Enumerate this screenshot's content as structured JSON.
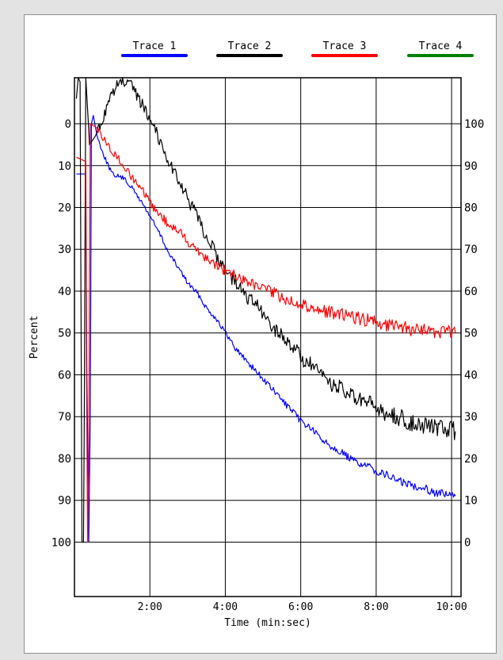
{
  "chart_data": {
    "type": "line",
    "xlabel": "Time (min:sec)",
    "ylabel": "Percent",
    "x_unit": "minutes",
    "xlim": [
      0,
      10.25
    ],
    "x_ticks": [
      {
        "value": 2,
        "label": "2:00"
      },
      {
        "value": 4,
        "label": "4:00"
      },
      {
        "value": 6,
        "label": "6:00"
      },
      {
        "value": 8,
        "label": "8:00"
      },
      {
        "value": 10,
        "label": "10:00"
      }
    ],
    "left_axis": {
      "direction": "inverted",
      "ylim": [
        -11,
        113
      ],
      "ticks": [
        0,
        10,
        20,
        30,
        40,
        50,
        60,
        70,
        80,
        90,
        100
      ]
    },
    "right_axis": {
      "ylim": [
        111,
        -13
      ],
      "ticks": [
        100,
        90,
        80,
        70,
        60,
        50,
        40,
        30,
        20,
        10,
        0
      ]
    },
    "grid": true,
    "legend_position": "top",
    "series": [
      {
        "name": "Trace 1",
        "color": "#0000ff",
        "points": [
          [
            0.05,
            12
          ],
          [
            0.3,
            12
          ],
          [
            0.33,
            60
          ],
          [
            0.38,
            100
          ],
          [
            0.42,
            70
          ],
          [
            0.45,
            0
          ],
          [
            0.5,
            -2
          ],
          [
            0.6,
            3
          ],
          [
            0.8,
            8
          ],
          [
            1,
            12
          ],
          [
            1.3,
            13
          ],
          [
            1.5,
            15
          ],
          [
            1.8,
            19
          ],
          [
            2,
            22
          ],
          [
            2.3,
            27
          ],
          [
            2.5,
            31
          ],
          [
            2.8,
            35
          ],
          [
            3,
            38
          ],
          [
            3.3,
            41
          ],
          [
            3.5,
            44
          ],
          [
            3.8,
            47
          ],
          [
            4,
            50
          ],
          [
            4.3,
            54
          ],
          [
            4.5,
            56
          ],
          [
            4.8,
            59
          ],
          [
            5,
            61
          ],
          [
            5.3,
            64
          ],
          [
            5.5,
            66
          ],
          [
            5.8,
            69
          ],
          [
            6,
            71
          ],
          [
            6.3,
            73
          ],
          [
            6.5,
            75
          ],
          [
            6.8,
            77
          ],
          [
            7,
            78
          ],
          [
            7.3,
            80
          ],
          [
            7.5,
            81
          ],
          [
            7.8,
            82
          ],
          [
            8,
            83
          ],
          [
            8.3,
            84
          ],
          [
            8.5,
            85
          ],
          [
            8.8,
            86
          ],
          [
            9,
            86.5
          ],
          [
            9.3,
            87
          ],
          [
            9.5,
            88
          ],
          [
            9.8,
            88.5
          ],
          [
            10.1,
            89
          ]
        ]
      },
      {
        "name": "Trace 2",
        "color": "#000000",
        "points": [
          [
            0.05,
            -6
          ],
          [
            0.1,
            -11
          ],
          [
            0.15,
            -10
          ],
          [
            0.2,
            100
          ],
          [
            0.24,
            100
          ],
          [
            0.26,
            70
          ],
          [
            0.3,
            -11
          ],
          [
            0.4,
            5
          ],
          [
            0.55,
            3
          ],
          [
            0.7,
            0
          ],
          [
            0.9,
            -5
          ],
          [
            1.1,
            -9
          ],
          [
            1.3,
            -10
          ],
          [
            1.5,
            -9
          ],
          [
            1.7,
            -6
          ],
          [
            1.9,
            -3
          ],
          [
            2.1,
            0
          ],
          [
            2.3,
            5
          ],
          [
            2.5,
            9
          ],
          [
            2.8,
            14
          ],
          [
            3,
            18
          ],
          [
            3.3,
            23
          ],
          [
            3.5,
            27
          ],
          [
            3.8,
            32
          ],
          [
            4,
            35
          ],
          [
            4.3,
            38
          ],
          [
            4.5,
            41
          ],
          [
            4.8,
            43
          ],
          [
            5,
            46
          ],
          [
            5.3,
            49
          ],
          [
            5.5,
            51
          ],
          [
            5.8,
            53
          ],
          [
            6,
            56
          ],
          [
            6.3,
            58
          ],
          [
            6.5,
            60
          ],
          [
            6.8,
            62
          ],
          [
            7,
            63
          ],
          [
            7.3,
            65
          ],
          [
            7.5,
            66
          ],
          [
            7.8,
            67
          ],
          [
            8,
            68
          ],
          [
            8.3,
            69.5
          ],
          [
            8.5,
            70
          ],
          [
            8.8,
            71
          ],
          [
            9,
            71.5
          ],
          [
            9.3,
            72
          ],
          [
            9.5,
            72.5
          ],
          [
            9.8,
            73
          ],
          [
            10.1,
            73.5
          ]
        ]
      },
      {
        "name": "Trace 3",
        "color": "#ff0000",
        "points": [
          [
            0.05,
            8
          ],
          [
            0.3,
            9
          ],
          [
            0.32,
            60
          ],
          [
            0.35,
            100
          ],
          [
            0.38,
            80
          ],
          [
            0.42,
            0
          ],
          [
            0.6,
            1
          ],
          [
            0.8,
            4
          ],
          [
            1,
            6.5
          ],
          [
            1.3,
            10
          ],
          [
            1.5,
            12.5
          ],
          [
            1.8,
            16
          ],
          [
            2,
            19
          ],
          [
            2.3,
            22
          ],
          [
            2.5,
            24
          ],
          [
            2.8,
            26
          ],
          [
            3,
            28
          ],
          [
            3.3,
            30.5
          ],
          [
            3.5,
            32
          ],
          [
            3.8,
            34
          ],
          [
            4,
            35
          ],
          [
            4.3,
            36.5
          ],
          [
            4.5,
            37.5
          ],
          [
            4.8,
            38.5
          ],
          [
            5,
            39.5
          ],
          [
            5.3,
            40.5
          ],
          [
            5.5,
            41.5
          ],
          [
            5.8,
            42.5
          ],
          [
            6,
            43
          ],
          [
            6.3,
            44
          ],
          [
            6.5,
            44.5
          ],
          [
            6.8,
            45
          ],
          [
            7,
            45.5
          ],
          [
            7.3,
            46
          ],
          [
            7.5,
            46.5
          ],
          [
            7.8,
            47
          ],
          [
            8,
            47.5
          ],
          [
            8.3,
            48
          ],
          [
            8.5,
            48.5
          ],
          [
            8.8,
            49
          ],
          [
            9,
            49
          ],
          [
            9.3,
            49.5
          ],
          [
            9.5,
            49.5
          ],
          [
            9.8,
            50
          ],
          [
            10.1,
            50
          ]
        ]
      },
      {
        "name": "Trace 4",
        "color": "#008000",
        "points": []
      }
    ]
  }
}
